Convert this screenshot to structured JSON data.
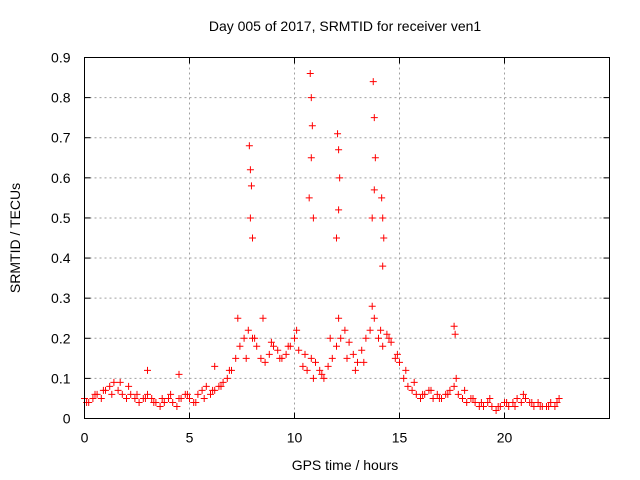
{
  "chart_data": {
    "type": "scatter",
    "title": "Day 005 of 2017, SRMTID for receiver ven1",
    "xlabel": "GPS time / hours",
    "ylabel": "SRMTID / TECUs",
    "xlim": [
      0,
      25
    ],
    "ylim": [
      0,
      0.9
    ],
    "xticks": [
      0,
      5,
      10,
      15,
      20
    ],
    "xtick_labels": [
      "0",
      "5",
      "10",
      "15",
      "20"
    ],
    "yticks": [
      0,
      0.1,
      0.2,
      0.3,
      0.4,
      0.5,
      0.6,
      0.7,
      0.8,
      0.9
    ],
    "ytick_labels": [
      "0",
      "0.1",
      "0.2",
      "0.3",
      "0.4",
      "0.5",
      "0.6",
      "0.7",
      "0.8",
      "0.9"
    ],
    "grid": true,
    "marker": "+",
    "color": "#ff0000",
    "series": [
      {
        "name": "SRMTID",
        "x": [
          0.0,
          0.2,
          0.4,
          0.6,
          0.8,
          1.0,
          1.2,
          1.4,
          1.6,
          1.8,
          2.0,
          2.2,
          2.4,
          2.6,
          2.8,
          3.0,
          3.2,
          3.4,
          3.6,
          3.8,
          4.0,
          4.2,
          4.4,
          4.6,
          4.8,
          5.0,
          5.2,
          5.4,
          5.6,
          5.8,
          6.0,
          6.2,
          6.4,
          6.6,
          6.8,
          7.0,
          7.2,
          7.4,
          7.6,
          7.8,
          8.0,
          8.2,
          8.4,
          8.6,
          8.8,
          9.0,
          9.2,
          9.4,
          9.6,
          9.8,
          10.0,
          10.2,
          10.4,
          10.6,
          10.8,
          11.0,
          11.2,
          11.4,
          11.6,
          11.8,
          12.0,
          12.2,
          12.4,
          12.6,
          12.8,
          13.0,
          13.2,
          13.4,
          13.6,
          13.8,
          14.0,
          14.2,
          14.4,
          14.6,
          14.8,
          15.0,
          15.2,
          15.4,
          15.6,
          15.8,
          16.0,
          16.2,
          16.4,
          16.6,
          16.8,
          17.0,
          17.2,
          17.4,
          17.6,
          17.8,
          18.0,
          18.2,
          18.4,
          18.6,
          18.8,
          19.0,
          19.2,
          19.4,
          19.6,
          19.8,
          20.0,
          20.2,
          20.4,
          20.6,
          20.8,
          21.0,
          21.2,
          21.4,
          21.6,
          21.8,
          22.0,
          22.2,
          22.4,
          22.6,
          0.1,
          0.5,
          0.9,
          1.3,
          1.7,
          2.1,
          2.5,
          2.9,
          3.3,
          3.7,
          4.1,
          4.5,
          4.9,
          5.3,
          5.7,
          6.1,
          6.5,
          6.9,
          7.3,
          7.7,
          8.1,
          8.5,
          8.9,
          9.3,
          9.7,
          10.1,
          10.5,
          10.9,
          11.3,
          11.7,
          12.1,
          12.5,
          12.9,
          13.3,
          13.7,
          14.1,
          14.5,
          14.9,
          15.3,
          15.7,
          16.1,
          16.5,
          16.9,
          17.3,
          17.7,
          18.1,
          18.5,
          18.9,
          19.3,
          19.7,
          20.1,
          20.5,
          20.9,
          21.3,
          21.7,
          22.1,
          22.5,
          7.85,
          7.9,
          7.95,
          7.9,
          8.0,
          10.75,
          10.8,
          10.85,
          10.8,
          10.7,
          10.9,
          12.05,
          12.1,
          12.15,
          12.1,
          12.0,
          13.75,
          13.8,
          13.85,
          13.8,
          13.7,
          14.15,
          14.2,
          14.25,
          14.2,
          17.6,
          17.65,
          3.0,
          6.2,
          4.5
        ],
        "y": [
          0.05,
          0.04,
          0.05,
          0.06,
          0.05,
          0.07,
          0.08,
          0.09,
          0.07,
          0.06,
          0.05,
          0.06,
          0.05,
          0.04,
          0.05,
          0.06,
          0.05,
          0.04,
          0.03,
          0.04,
          0.05,
          0.04,
          0.03,
          0.05,
          0.06,
          0.05,
          0.04,
          0.06,
          0.07,
          0.08,
          0.06,
          0.07,
          0.08,
          0.09,
          0.1,
          0.12,
          0.15,
          0.18,
          0.2,
          0.22,
          0.2,
          0.18,
          0.15,
          0.14,
          0.16,
          0.18,
          0.17,
          0.15,
          0.16,
          0.18,
          0.2,
          0.17,
          0.13,
          0.12,
          0.15,
          0.14,
          0.12,
          0.1,
          0.13,
          0.15,
          0.18,
          0.2,
          0.22,
          0.19,
          0.16,
          0.14,
          0.17,
          0.2,
          0.22,
          0.25,
          0.2,
          0.18,
          0.21,
          0.19,
          0.15,
          0.14,
          0.1,
          0.08,
          0.07,
          0.06,
          0.05,
          0.06,
          0.07,
          0.05,
          0.06,
          0.05,
          0.06,
          0.07,
          0.08,
          0.06,
          0.05,
          0.04,
          0.05,
          0.04,
          0.03,
          0.03,
          0.04,
          0.03,
          0.02,
          0.03,
          0.04,
          0.03,
          0.04,
          0.05,
          0.04,
          0.05,
          0.04,
          0.03,
          0.04,
          0.03,
          0.03,
          0.04,
          0.03,
          0.05,
          0.04,
          0.06,
          0.07,
          0.06,
          0.09,
          0.08,
          0.06,
          0.05,
          0.04,
          0.05,
          0.06,
          0.05,
          0.06,
          0.04,
          0.05,
          0.07,
          0.08,
          0.12,
          0.25,
          0.15,
          0.2,
          0.25,
          0.19,
          0.15,
          0.18,
          0.22,
          0.16,
          0.1,
          0.11,
          0.2,
          0.25,
          0.15,
          0.12,
          0.14,
          0.28,
          0.22,
          0.2,
          0.16,
          0.12,
          0.09,
          0.06,
          0.07,
          0.05,
          0.06,
          0.1,
          0.07,
          0.05,
          0.04,
          0.05,
          0.03,
          0.04,
          0.03,
          0.06,
          0.04,
          0.03,
          0.03,
          0.04,
          0.68,
          0.62,
          0.58,
          0.5,
          0.45,
          0.86,
          0.8,
          0.73,
          0.65,
          0.55,
          0.5,
          0.71,
          0.67,
          0.6,
          0.52,
          0.45,
          0.84,
          0.75,
          0.65,
          0.57,
          0.5,
          0.55,
          0.5,
          0.45,
          0.38,
          0.23,
          0.21,
          0.12,
          0.13,
          0.11
        ]
      }
    ]
  }
}
